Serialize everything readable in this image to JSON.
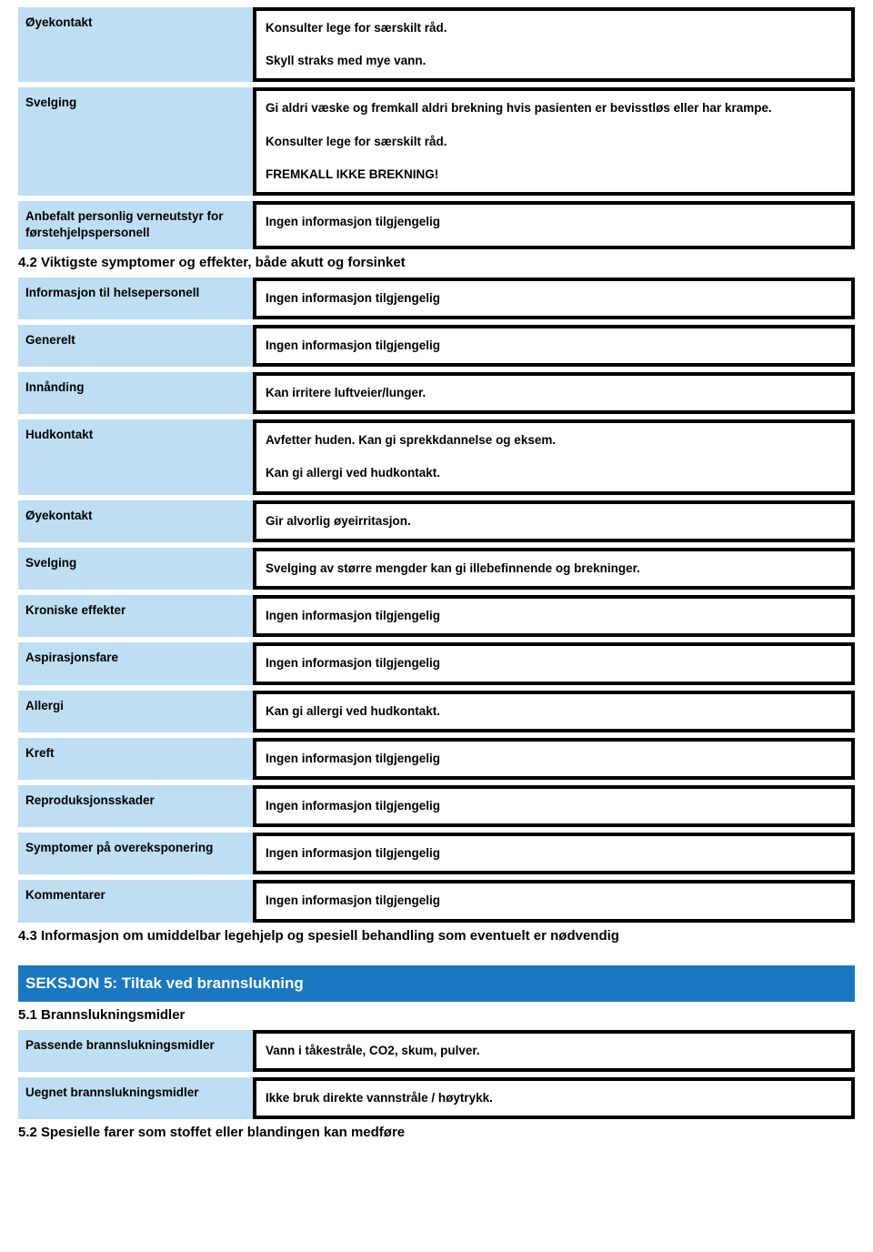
{
  "colors": {
    "label_bg": "#bedef4",
    "value_border": "#000000",
    "banner_bg": "#1a78c2",
    "banner_text": "#ffffff",
    "page_bg": "#ffffff"
  },
  "rows_top": [
    {
      "label": "Øyekontakt",
      "values": [
        "Konsulter lege for særskilt råd.",
        "Skyll straks med mye vann."
      ]
    },
    {
      "label": "Svelging",
      "values": [
        "Gi aldri væske og fremkall aldri brekning hvis pasienten er bevisstløs eller har krampe.",
        "Konsulter lege for særskilt råd.",
        "FREMKALL IKKE BREKNING!"
      ]
    },
    {
      "label": "Anbefalt personlig verneutstyr for førstehjelpspersonell",
      "values": [
        "Ingen informasjon tilgjengelig"
      ]
    }
  ],
  "subhead_42": "4.2 Viktigste symptomer og effekter, både akutt og forsinket",
  "rows_42": [
    {
      "label": "Informasjon til helsepersonell",
      "values": [
        "Ingen informasjon tilgjengelig"
      ]
    },
    {
      "label": "Generelt",
      "values": [
        "Ingen informasjon tilgjengelig"
      ]
    },
    {
      "label": "Innånding",
      "values": [
        "Kan irritere luftveier/lunger."
      ]
    },
    {
      "label": "Hudkontakt",
      "values": [
        "Avfetter huden. Kan gi sprekkdannelse og eksem.",
        "Kan gi allergi ved hudkontakt."
      ]
    },
    {
      "label": "Øyekontakt",
      "values": [
        "Gir alvorlig øyeirritasjon."
      ]
    },
    {
      "label": "Svelging",
      "values": [
        "Svelging av større mengder kan gi illebefinnende og brekninger."
      ]
    },
    {
      "label": "Kroniske effekter",
      "values": [
        "Ingen informasjon tilgjengelig"
      ]
    },
    {
      "label": "Aspirasjonsfare",
      "values": [
        "Ingen informasjon tilgjengelig"
      ]
    },
    {
      "label": "Allergi",
      "values": [
        "Kan gi allergi ved hudkontakt."
      ]
    },
    {
      "label": "Kreft",
      "values": [
        "Ingen informasjon tilgjengelig"
      ]
    },
    {
      "label": "Reproduksjonsskader",
      "values": [
        "Ingen informasjon tilgjengelig"
      ]
    },
    {
      "label": "Symptomer på overeksponering",
      "values": [
        "Ingen informasjon tilgjengelig"
      ]
    },
    {
      "label": "Kommentarer",
      "values": [
        "Ingen informasjon tilgjengelig"
      ]
    }
  ],
  "subhead_43": "4.3 Informasjon om umiddelbar legehjelp og spesiell behandling som eventuelt er nødvendig",
  "section5_title": "SEKSJON 5: Tiltak ved brannslukning",
  "subhead_51": "5.1 Brannslukningsmidler",
  "rows_51": [
    {
      "label": "Passende brannslukningsmidler",
      "values": [
        "Vann i tåkestråle, CO2, skum, pulver."
      ]
    },
    {
      "label": "Uegnet brannslukningsmidler",
      "values": [
        "Ikke bruk direkte vannstråle / høytrykk."
      ]
    }
  ],
  "subhead_52": "5.2 Spesielle farer som stoffet eller blandingen kan medføre"
}
